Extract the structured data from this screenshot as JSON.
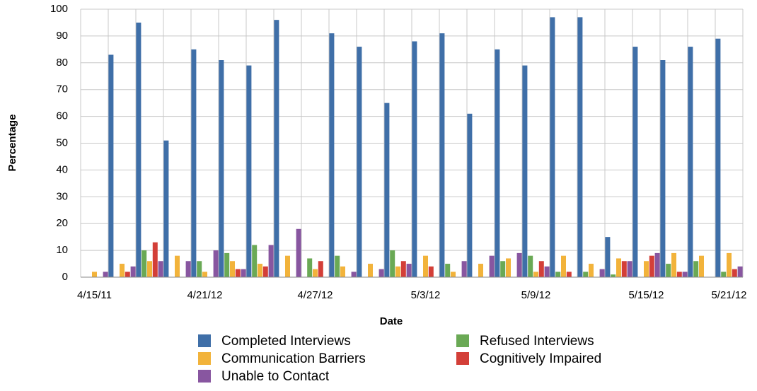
{
  "chart_data": {
    "type": "bar",
    "xlabel": "Date",
    "ylabel": "Percentage",
    "categories": [
      "4/15/11",
      null,
      null,
      null,
      "4/21/12",
      null,
      null,
      null,
      "4/27/12",
      null,
      null,
      null,
      "5/3/12",
      null,
      null,
      null,
      "5/9/12",
      null,
      null,
      null,
      "5/15/12",
      null,
      null,
      "5/21/12"
    ],
    "series": [
      {
        "name": "Completed Interviews",
        "color": "#3f6fa8",
        "values": [
          0,
          83,
          95,
          51,
          85,
          81,
          79,
          96,
          0,
          91,
          86,
          65,
          88,
          91,
          61,
          85,
          79,
          97,
          97,
          15,
          86,
          81,
          86,
          89
        ]
      },
      {
        "name": "Refused Interviews",
        "color": "#6aa955",
        "values": [
          0,
          0,
          10,
          0,
          6,
          9,
          12,
          0,
          7,
          8,
          0,
          10,
          0,
          5,
          0,
          6,
          8,
          2,
          2,
          1,
          0,
          5,
          6,
          2
        ]
      },
      {
        "name": "Communication Barriers",
        "color": "#f2b33b",
        "values": [
          2,
          5,
          6,
          8,
          2,
          6,
          5,
          8,
          3,
          4,
          5,
          4,
          8,
          2,
          5,
          7,
          2,
          8,
          5,
          7,
          6,
          9,
          8,
          9
        ]
      },
      {
        "name": "Cognitively Impaired",
        "color": "#d33f38",
        "values": [
          0,
          2,
          13,
          0,
          0,
          3,
          4,
          0,
          6,
          0,
          0,
          6,
          4,
          0,
          0,
          0,
          6,
          2,
          0,
          6,
          8,
          2,
          0,
          3
        ]
      },
      {
        "name": "Unable to Contact",
        "color": "#8856a0",
        "values": [
          2,
          4,
          6,
          6,
          10,
          3,
          12,
          18,
          0,
          2,
          3,
          5,
          0,
          6,
          8,
          9,
          4,
          0,
          3,
          6,
          9,
          2,
          0,
          4
        ]
      }
    ],
    "ylim": [
      0,
      100
    ],
    "yticks": [
      0,
      10,
      20,
      30,
      40,
      50,
      60,
      70,
      80,
      90,
      100
    ],
    "grid": true
  }
}
